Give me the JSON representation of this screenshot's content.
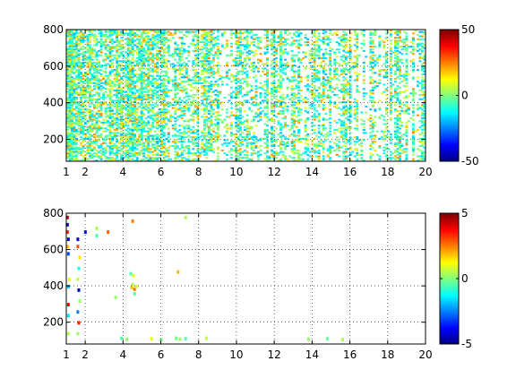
{
  "figure": {
    "background": "#ffffff",
    "colormap": "jet"
  },
  "chart_data": [
    {
      "type": "heatmap",
      "title": "",
      "xlabel": "",
      "ylabel": "",
      "xlim": [
        1,
        20
      ],
      "ylim": [
        80,
        800
      ],
      "grid": true,
      "x_ticks": [
        1,
        2,
        4,
        6,
        8,
        10,
        12,
        14,
        16,
        18,
        20
      ],
      "x_tick_labels": [
        "1",
        "2",
        "4",
        "6",
        "8",
        "10",
        "12",
        "14",
        "16",
        "18",
        "20"
      ],
      "y_ticks": [
        200,
        400,
        600,
        800
      ],
      "y_tick_labels": [
        "200",
        "400",
        "600",
        "800"
      ],
      "colorbar": {
        "clim": [
          -50,
          50
        ],
        "ticks": [
          -50,
          0,
          50
        ],
        "tick_labels": [
          "-50",
          "0",
          "50"
        ]
      },
      "description_of_values": "dense scattered cells mostly near 0 (cyan-green-yellow), densest for x between 1 and 5, sparser toward x=20",
      "value_range_observed": [
        -20,
        25
      ],
      "density_profile": {
        "x": [
          1,
          2,
          3,
          4,
          5,
          6,
          7,
          8,
          10,
          12,
          14,
          16,
          18,
          20
        ],
        "fill_fraction": [
          0.75,
          0.6,
          0.55,
          0.55,
          0.55,
          0.4,
          0.4,
          0.35,
          0.3,
          0.3,
          0.28,
          0.25,
          0.25,
          0.25
        ]
      }
    },
    {
      "type": "heatmap",
      "title": "",
      "xlabel": "",
      "ylabel": "",
      "xlim": [
        1,
        20
      ],
      "ylim": [
        80,
        800
      ],
      "grid": true,
      "x_ticks": [
        1,
        2,
        4,
        6,
        8,
        10,
        12,
        14,
        16,
        18,
        20
      ],
      "x_tick_labels": [
        "1",
        "2",
        "4",
        "6",
        "8",
        "10",
        "12",
        "14",
        "16",
        "18",
        "20"
      ],
      "y_ticks": [
        200,
        400,
        600,
        800
      ],
      "y_tick_labels": [
        "200",
        "400",
        "600",
        "800"
      ],
      "colorbar": {
        "clim": [
          -5,
          5
        ],
        "ticks": [
          -5,
          0,
          5
        ],
        "tick_labels": [
          "-5",
          "0",
          "5"
        ]
      },
      "description_of_values": "very sparse cells; vertical streaks near x=1 to 2 with saturated red/blue, small clusters near x=4.5, y=400 and near y=110 for x=4 to 16",
      "cells": [
        {
          "x": 1.05,
          "y": 780,
          "v": 4.5
        },
        {
          "x": 1.05,
          "y": 740,
          "v": -4.5
        },
        {
          "x": 1.05,
          "y": 700,
          "v": 3.5
        },
        {
          "x": 1.1,
          "y": 660,
          "v": -4.0
        },
        {
          "x": 1.05,
          "y": 620,
          "v": 2.0
        },
        {
          "x": 1.1,
          "y": 580,
          "v": -3.0
        },
        {
          "x": 1.15,
          "y": 440,
          "v": 1.0
        },
        {
          "x": 1.1,
          "y": 400,
          "v": -2.0
        },
        {
          "x": 1.1,
          "y": 300,
          "v": 4.0
        },
        {
          "x": 1.1,
          "y": 240,
          "v": -1.5
        },
        {
          "x": 1.1,
          "y": 140,
          "v": 0.5
        },
        {
          "x": 1.6,
          "y": 660,
          "v": -4.0
        },
        {
          "x": 1.6,
          "y": 620,
          "v": 3.0
        },
        {
          "x": 1.7,
          "y": 560,
          "v": 1.5
        },
        {
          "x": 1.65,
          "y": 500,
          "v": -1.0
        },
        {
          "x": 1.6,
          "y": 440,
          "v": 0.5
        },
        {
          "x": 1.65,
          "y": 380,
          "v": -4.5
        },
        {
          "x": 1.7,
          "y": 320,
          "v": 0.2
        },
        {
          "x": 1.6,
          "y": 260,
          "v": -2.5
        },
        {
          "x": 1.65,
          "y": 200,
          "v": 3.5
        },
        {
          "x": 1.6,
          "y": 140,
          "v": 0.3
        },
        {
          "x": 2.0,
          "y": 700,
          "v": -3.5
        },
        {
          "x": 2.6,
          "y": 720,
          "v": 0.4
        },
        {
          "x": 2.6,
          "y": 680,
          "v": -0.6
        },
        {
          "x": 3.2,
          "y": 700,
          "v": 2.8
        },
        {
          "x": 3.6,
          "y": 340,
          "v": 0.2
        },
        {
          "x": 4.5,
          "y": 760,
          "v": 2.5
        },
        {
          "x": 4.4,
          "y": 470,
          "v": -0.5
        },
        {
          "x": 4.55,
          "y": 460,
          "v": 1.0
        },
        {
          "x": 4.5,
          "y": 410,
          "v": 0.5
        },
        {
          "x": 4.45,
          "y": 395,
          "v": 1.8
        },
        {
          "x": 4.6,
          "y": 385,
          "v": 2.5
        },
        {
          "x": 4.7,
          "y": 400,
          "v": 0.8
        },
        {
          "x": 4.6,
          "y": 360,
          "v": -0.4
        },
        {
          "x": 6.9,
          "y": 480,
          "v": 2.0
        },
        {
          "x": 7.3,
          "y": 780,
          "v": 0.5
        },
        {
          "x": 3.9,
          "y": 115,
          "v": -0.5
        },
        {
          "x": 4.2,
          "y": 110,
          "v": 0.2
        },
        {
          "x": 5.5,
          "y": 112,
          "v": 1.0
        },
        {
          "x": 6.0,
          "y": 108,
          "v": 0.0
        },
        {
          "x": 6.8,
          "y": 115,
          "v": -0.2
        },
        {
          "x": 7.0,
          "y": 110,
          "v": 0.3
        },
        {
          "x": 7.3,
          "y": 112,
          "v": -0.5
        },
        {
          "x": 8.4,
          "y": 115,
          "v": 0.6
        },
        {
          "x": 13.8,
          "y": 110,
          "v": 0.2
        },
        {
          "x": 14.8,
          "y": 112,
          "v": -0.3
        },
        {
          "x": 15.6,
          "y": 108,
          "v": 0.4
        }
      ]
    }
  ]
}
